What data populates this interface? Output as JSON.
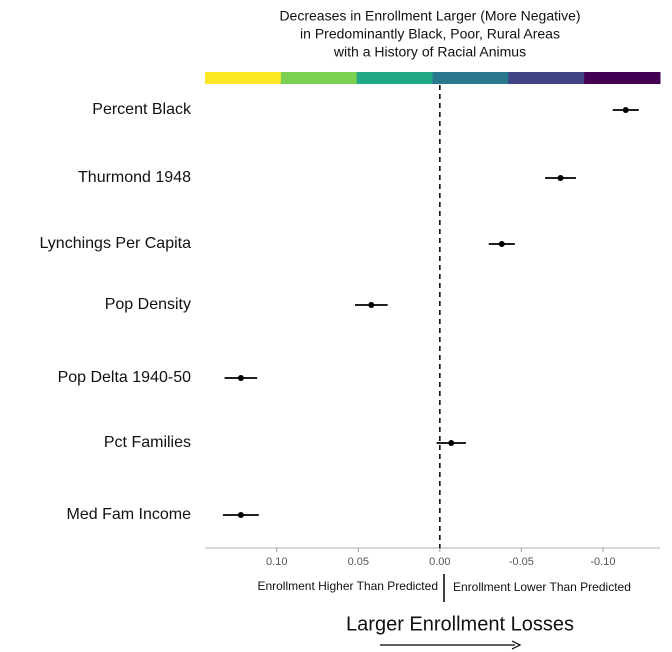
{
  "chart_data": {
    "type": "errorbar",
    "title": [
      "Decreases in Enrollment Larger (More Negative)",
      "in Predominantly Black, Poor, Rural Areas",
      "with a History of Racial Animus"
    ],
    "categories": [
      "Percent Black",
      "Thurmond 1948",
      "Lynchings Per Capita",
      "Pop Density",
      "Pop Delta 1940-50",
      "Pct Families",
      "Med Fam Income"
    ],
    "values": [
      -0.114,
      -0.074,
      -0.038,
      0.042,
      0.122,
      -0.007,
      0.122
    ],
    "errors": [
      0.008,
      0.0095,
      0.008,
      0.01,
      0.01,
      0.009,
      0.011
    ],
    "color": "#000000",
    "xlim": [
      0.144,
      -0.135
    ],
    "xticks": [
      {
        "value": 0.1,
        "label": "0.10"
      },
      {
        "value": 0.05,
        "label": "0.05"
      },
      {
        "value": 0,
        "label": "0.00"
      },
      {
        "value": -0.05,
        "label": "-0.05"
      },
      {
        "value": -0.1,
        "label": "-0.10"
      }
    ],
    "colorbar": [
      "#fde725",
      "#7ad151",
      "#22a884",
      "#2a788e",
      "#414487",
      "#440154"
    ],
    "reference_line": 0,
    "annotations": [
      "Enrollment Higher Than Predicted",
      "Enrollment Lower Than Predicted",
      "Larger Enrollment Losses"
    ]
  }
}
